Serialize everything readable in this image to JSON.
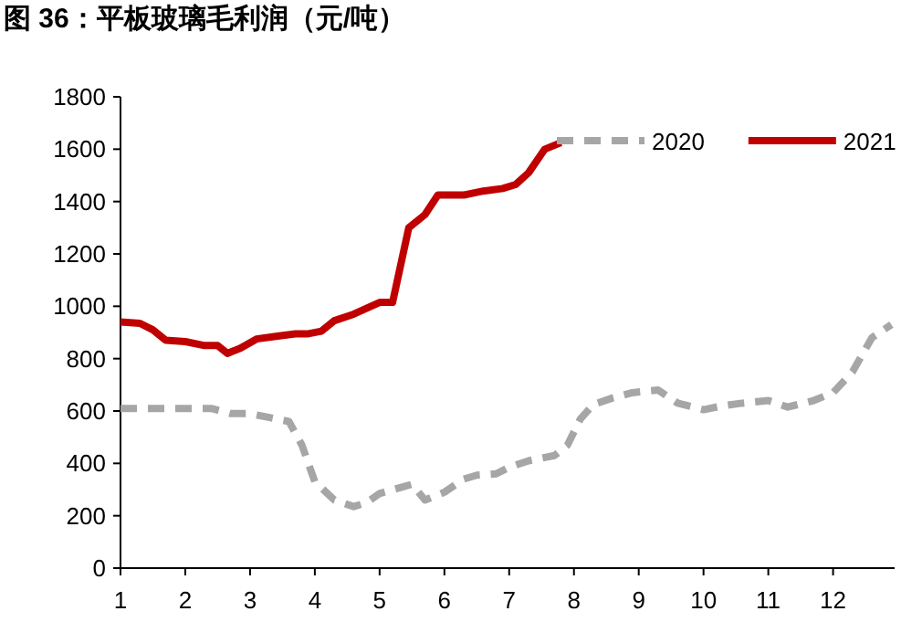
{
  "chart_data": {
    "type": "line",
    "title": "图 36：平板玻璃毛利润（元/吨）",
    "xlim": [
      1,
      12.95
    ],
    "xticks": [
      1,
      2,
      3,
      4,
      5,
      6,
      7,
      8,
      9,
      10,
      11,
      12
    ],
    "ylim": [
      0,
      1800
    ],
    "yticks": [
      0,
      200,
      400,
      600,
      800,
      1000,
      1200,
      1400,
      1600,
      1800
    ],
    "grid": false,
    "legend": "top right",
    "series": [
      {
        "name": "2020",
        "color": "#a6a6a6",
        "line_style": "dashed",
        "x": [
          1,
          1.5,
          2,
          2.4,
          2.7,
          3,
          3.3,
          3.6,
          3.8,
          4,
          4.3,
          4.6,
          4.8,
          5,
          5.5,
          5.7,
          6,
          6.3,
          6.5,
          6.8,
          7,
          7.3,
          7.7,
          7.9,
          8.1,
          8.3,
          8.6,
          8.9,
          9.3,
          9.6,
          10,
          10.3,
          10.6,
          11,
          11.3,
          11.7,
          12,
          12.3,
          12.6,
          12.9
        ],
        "values": [
          610,
          610,
          610,
          610,
          590,
          590,
          575,
          560,
          470,
          330,
          260,
          235,
          250,
          285,
          320,
          260,
          290,
          340,
          355,
          360,
          385,
          410,
          430,
          470,
          570,
          625,
          650,
          670,
          680,
          630,
          605,
          620,
          630,
          640,
          615,
          640,
          670,
          750,
          880,
          930
        ]
      },
      {
        "name": "2021",
        "color": "#c00000",
        "line_style": "solid",
        "x": [
          1,
          1.3,
          1.5,
          1.7,
          2,
          2.3,
          2.5,
          2.65,
          2.85,
          3.1,
          3.4,
          3.7,
          3.9,
          4.1,
          4.3,
          4.6,
          5,
          5.2,
          5.45,
          5.7,
          5.9,
          6.3,
          6.6,
          6.9,
          7.1,
          7.3,
          7.55,
          7.8
        ],
        "values": [
          940,
          935,
          910,
          870,
          865,
          850,
          850,
          820,
          840,
          875,
          885,
          895,
          895,
          905,
          945,
          970,
          1015,
          1015,
          1300,
          1350,
          1425,
          1425,
          1440,
          1450,
          1465,
          1510,
          1600,
          1625
        ]
      }
    ]
  }
}
